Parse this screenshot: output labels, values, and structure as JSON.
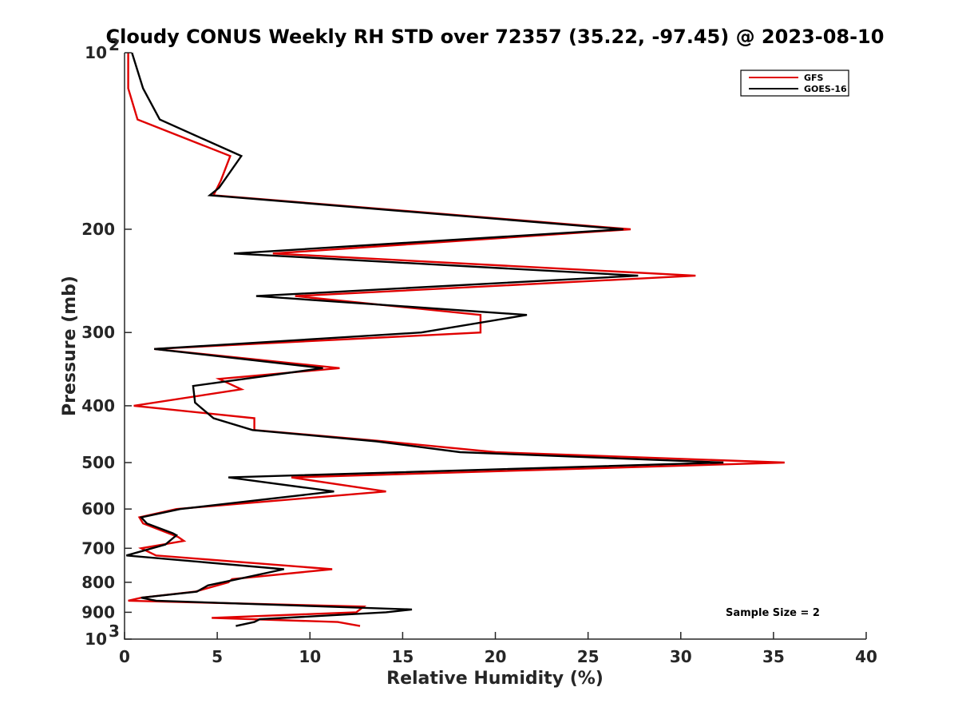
{
  "chart_data": {
    "type": "line",
    "title": "Cloudy CONUS Weekly RH STD over 72357 (35.22, -97.45) @ 2023-08-10",
    "xlabel": "Relative Humidity (%)",
    "ylabel": "Pressure (mb)",
    "xlim": [
      0,
      40
    ],
    "ylim": [
      100,
      1000
    ],
    "yscale": "log",
    "y_reversed": true,
    "grid": false,
    "legend_position": "top-right",
    "x_ticks": [
      "0",
      "5",
      "10",
      "15",
      "20",
      "25",
      "30",
      "35",
      "40"
    ],
    "y_ticks": [
      {
        "value": 100,
        "base": "10",
        "exp": "2"
      },
      {
        "value": 200,
        "label": "200"
      },
      {
        "value": 300,
        "label": "300"
      },
      {
        "value": 400,
        "label": "400"
      },
      {
        "value": 500,
        "label": "500"
      },
      {
        "value": 600,
        "label": "600"
      },
      {
        "value": 700,
        "label": "700"
      },
      {
        "value": 800,
        "label": "800"
      },
      {
        "value": 900,
        "label": "900"
      },
      {
        "value": 1000,
        "base": "10",
        "exp": "3"
      }
    ],
    "annotation": "Sample Size = 2",
    "series": [
      {
        "name": "GFS",
        "color": "#e00000",
        "points": [
          [
            0.2,
            100
          ],
          [
            0.2,
            115
          ],
          [
            0.7,
            130
          ],
          [
            5.7,
            150
          ],
          [
            5.2,
            165
          ],
          [
            4.8,
            175
          ],
          [
            27.3,
            200
          ],
          [
            8.0,
            220
          ],
          [
            30.8,
            240
          ],
          [
            9.2,
            260
          ],
          [
            19.2,
            280
          ],
          [
            19.2,
            300
          ],
          [
            1.6,
            320
          ],
          [
            11.6,
            345
          ],
          [
            5.1,
            360
          ],
          [
            6.3,
            375
          ],
          [
            0.5,
            400
          ],
          [
            7.0,
            420
          ],
          [
            7.0,
            440
          ],
          [
            14.0,
            460
          ],
          [
            20.0,
            480
          ],
          [
            35.6,
            500
          ],
          [
            9.0,
            530
          ],
          [
            14.1,
            560
          ],
          [
            2.8,
            600
          ],
          [
            0.8,
            620
          ],
          [
            1.0,
            635
          ],
          [
            2.9,
            670
          ],
          [
            3.2,
            680
          ],
          [
            0.9,
            700
          ],
          [
            1.7,
            720
          ],
          [
            11.2,
            760
          ],
          [
            5.8,
            790
          ],
          [
            5.6,
            800
          ],
          [
            3.8,
            830
          ],
          [
            0.9,
            850
          ],
          [
            0.2,
            860
          ],
          [
            12.9,
            880
          ],
          [
            12.5,
            900
          ],
          [
            4.7,
            920
          ],
          [
            11.5,
            935
          ],
          [
            12.7,
            950
          ]
        ]
      },
      {
        "name": "GOES-16",
        "color": "#000000",
        "points": [
          [
            0.4,
            100
          ],
          [
            1.0,
            115
          ],
          [
            1.9,
            130
          ],
          [
            6.3,
            150
          ],
          [
            5.1,
            170
          ],
          [
            4.6,
            175
          ],
          [
            26.9,
            200
          ],
          [
            5.9,
            220
          ],
          [
            27.7,
            240
          ],
          [
            7.1,
            260
          ],
          [
            21.7,
            280
          ],
          [
            16.0,
            300
          ],
          [
            1.6,
            320
          ],
          [
            10.7,
            345
          ],
          [
            3.7,
            370
          ],
          [
            3.8,
            395
          ],
          [
            4.0,
            400
          ],
          [
            4.8,
            420
          ],
          [
            6.9,
            440
          ],
          [
            13.6,
            460
          ],
          [
            18.1,
            480
          ],
          [
            32.3,
            500
          ],
          [
            5.6,
            530
          ],
          [
            11.3,
            560
          ],
          [
            3.0,
            600
          ],
          [
            0.9,
            620
          ],
          [
            1.2,
            635
          ],
          [
            2.6,
            660
          ],
          [
            2.8,
            665
          ],
          [
            2.2,
            690
          ],
          [
            0.1,
            720
          ],
          [
            8.6,
            760
          ],
          [
            6.1,
            790
          ],
          [
            4.5,
            810
          ],
          [
            3.9,
            830
          ],
          [
            0.9,
            850
          ],
          [
            1.7,
            860
          ],
          [
            15.5,
            890
          ],
          [
            14.1,
            900
          ],
          [
            7.3,
            925
          ],
          [
            7.0,
            935
          ],
          [
            6.0,
            950
          ]
        ]
      }
    ]
  }
}
